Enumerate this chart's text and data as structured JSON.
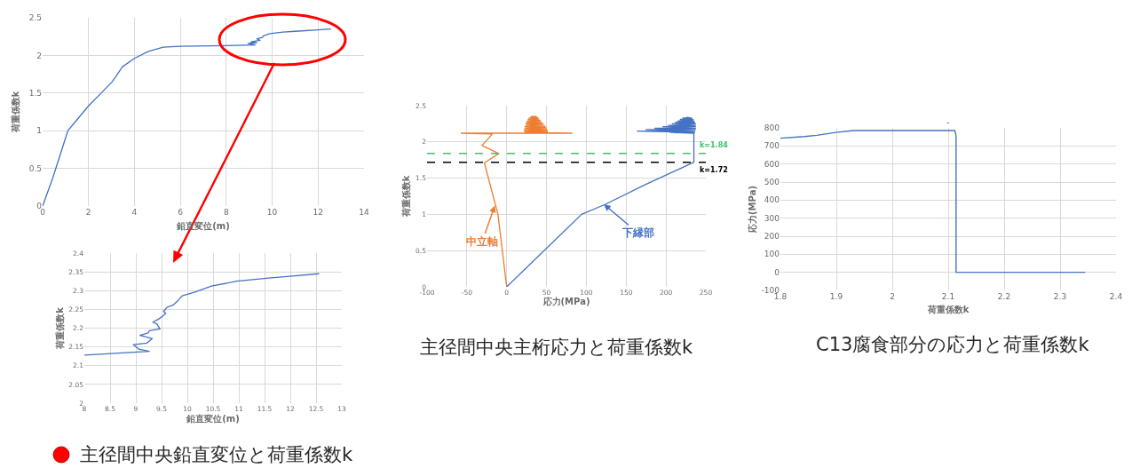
{
  "chart_data": [
    {
      "type": "line",
      "x": [
        0,
        0.45,
        1.1,
        1.29,
        2.0,
        2.52,
        3.03,
        3.48,
        4.0,
        4.58,
        5.25,
        6.0,
        8.0,
        9.26,
        8.95,
        9.32,
        9.08,
        9.47,
        9.33,
        9.58,
        9.61,
        9.9,
        10.47,
        11.0,
        12.0,
        12.55
      ],
      "values": [
        0,
        0.38,
        1.0,
        1.07,
        1.33,
        1.49,
        1.65,
        1.85,
        1.96,
        2.05,
        2.11,
        2.12,
        2.13,
        2.14,
        2.16,
        2.17,
        2.18,
        2.2,
        2.22,
        2.24,
        2.26,
        2.29,
        2.31,
        2.32,
        2.34,
        2.35
      ],
      "color": "#4472c4",
      "xlabel": "鉛直変位(m)",
      "ylabel": "荷重係数k",
      "xlim": [
        0,
        14
      ],
      "ylim": [
        0,
        2.5
      ],
      "xticks": [
        0,
        2,
        4,
        6,
        8,
        10,
        12,
        14
      ],
      "yticks": [
        0,
        0.5,
        1,
        1.5,
        2,
        2.5
      ],
      "grid": true
    },
    {
      "type": "line",
      "title": "主径間中央鉛直変位と荷重係数k",
      "x": [
        8.0,
        9.26,
        9.06,
        8.95,
        9.21,
        9.32,
        9.21,
        9.08,
        9.24,
        9.26,
        9.47,
        9.41,
        9.33,
        9.44,
        9.52,
        9.58,
        9.54,
        9.61,
        9.72,
        9.81,
        9.9,
        10.16,
        10.47,
        10.96,
        11.53,
        11.99,
        12.55
      ],
      "values": [
        2.128,
        2.138,
        2.144,
        2.156,
        2.16,
        2.172,
        2.176,
        2.181,
        2.187,
        2.193,
        2.198,
        2.211,
        2.216,
        2.224,
        2.232,
        2.239,
        2.245,
        2.256,
        2.261,
        2.272,
        2.286,
        2.297,
        2.312,
        2.325,
        2.333,
        2.338,
        2.345
      ],
      "color": "#4472c4",
      "xlabel": "鉛直変位(m)",
      "ylabel": "荷重係数k",
      "xlim": [
        8,
        13
      ],
      "ylim": [
        2,
        2.4
      ],
      "xticks": [
        8,
        8.5,
        9,
        9.5,
        10,
        10.5,
        11,
        11.5,
        12,
        12.5,
        13
      ],
      "yticks": [
        2,
        2.05,
        2.1,
        2.15,
        2.2,
        2.25,
        2.3,
        2.35,
        2.4
      ],
      "grid": true
    },
    {
      "type": "line",
      "title": "主径間中央主桁応力と荷重係数k",
      "xlabel": "応力(MPa)",
      "ylabel": "荷重係数k",
      "xlim": [
        -100,
        250
      ],
      "ylim": [
        0,
        2.5
      ],
      "xticks": [
        -100,
        -50,
        0,
        50,
        100,
        150,
        200,
        250
      ],
      "yticks": [
        0,
        0.5,
        1,
        1.5,
        2,
        2.5
      ],
      "grid": true,
      "series": [
        {
          "color": "#ed7d31",
          "x": [
            0,
            -11,
            -28,
            -10,
            -31,
            -18,
            -57,
            82,
            23,
            51,
            22,
            51,
            22,
            50,
            23,
            49,
            23,
            48,
            24,
            46,
            24,
            45,
            25,
            43,
            26,
            42,
            27,
            40,
            28,
            39,
            30,
            37,
            31,
            35
          ],
          "values": [
            0,
            1.0,
            1.71,
            1.84,
            1.95,
            2.11,
            2.12,
            2.12,
            2.13,
            2.14,
            2.15,
            2.16,
            2.17,
            2.18,
            2.19,
            2.2,
            2.21,
            2.22,
            2.23,
            2.24,
            2.25,
            2.26,
            2.27,
            2.28,
            2.29,
            2.3,
            2.31,
            2.32,
            2.33,
            2.34,
            2.34,
            2.35,
            2.35,
            2.35
          ]
        },
        {
          "color": "#4472c4",
          "x": [
            0,
            94,
            124,
            174,
            235,
            235,
            205,
            236,
            164,
            236,
            175,
            237,
            186,
            237,
            196,
            237,
            203,
            237,
            208,
            237,
            212,
            236,
            215,
            235,
            218,
            234,
            221,
            232,
            226
          ],
          "values": [
            0,
            1.0,
            1.14,
            1.41,
            1.72,
            2.12,
            2.13,
            2.13,
            2.15,
            2.15,
            2.17,
            2.17,
            2.19,
            2.19,
            2.21,
            2.21,
            2.23,
            2.23,
            2.25,
            2.25,
            2.27,
            2.27,
            2.29,
            2.29,
            2.31,
            2.31,
            2.33,
            2.33,
            2.34
          ]
        }
      ],
      "ref_lines": [
        {
          "axis": "y",
          "value": 1.84,
          "label": "k=1.84",
          "color": "#3cc46a",
          "line_style": "dashed"
        },
        {
          "axis": "y",
          "value": 1.72,
          "label": "k=1.72",
          "color": "#000000",
          "line_style": "dashed"
        }
      ],
      "annotations": [
        {
          "text": "中立軸",
          "x": -15,
          "y": 1.12
        },
        {
          "text": "下縁部",
          "x": 122,
          "y": 1.14
        }
      ]
    },
    {
      "type": "line",
      "title": "C13腐食部分の応力と荷重係数k",
      "annotations": [
        "-"
      ],
      "x": [
        1.8,
        1.843,
        1.865,
        1.899,
        1.931,
        2.112,
        2.114,
        2.114,
        2.344
      ],
      "values": [
        743,
        752,
        759,
        775,
        785,
        785,
        756,
        0,
        0
      ],
      "color": "#4472c4",
      "xlabel": "荷重係数k",
      "ylabel": "応力(MPa)",
      "xlim": [
        1.8,
        2.4
      ],
      "ylim": [
        -100,
        800
      ],
      "xticks": [
        1.8,
        1.9,
        2,
        2.1,
        2.2,
        2.3,
        2.4
      ],
      "yticks": [
        -100,
        0,
        100,
        200,
        300,
        400,
        500,
        600,
        700,
        800
      ],
      "grid": true
    }
  ]
}
